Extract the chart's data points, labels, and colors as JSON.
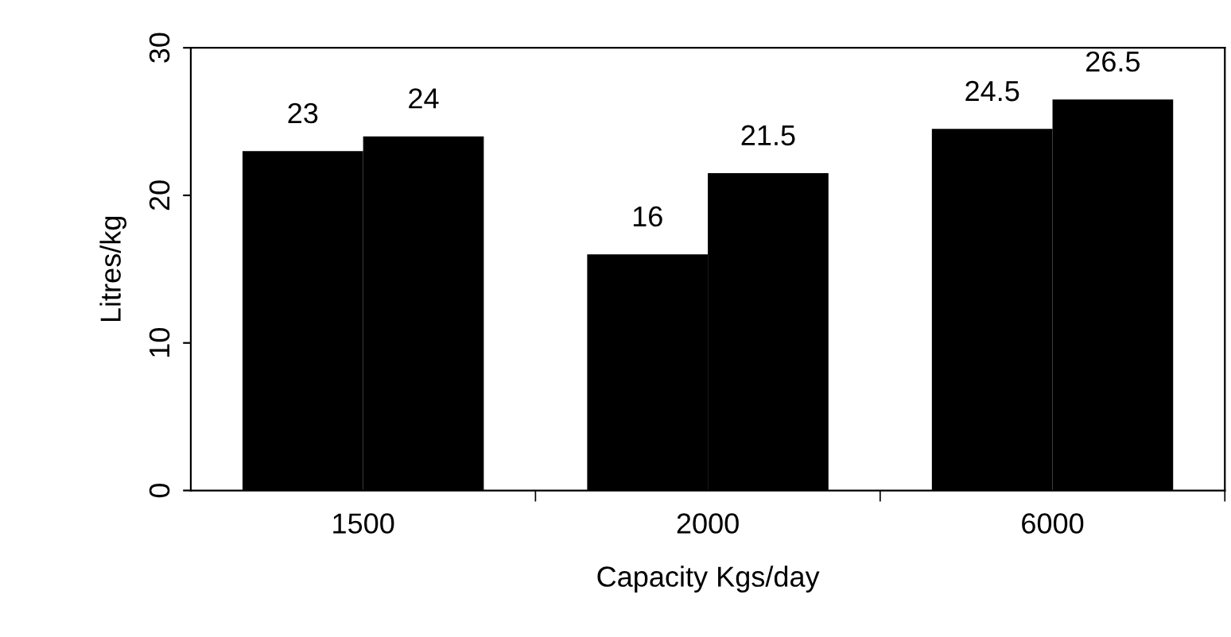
{
  "chart_data": {
    "type": "bar",
    "xlabel": "Capacity Kgs/day",
    "ylabel": "Litres/kg",
    "categories": [
      "1500",
      "2000",
      "6000"
    ],
    "series": [
      {
        "color": "#000000",
        "values": [
          23,
          16,
          24.5
        ]
      },
      {
        "color": "#000000",
        "values": [
          24,
          21.5,
          26.5
        ]
      }
    ],
    "ylim": [
      0,
      30
    ],
    "yticks": [
      0,
      10,
      20,
      30
    ],
    "grid": false,
    "legend": false,
    "data_labels": true
  }
}
